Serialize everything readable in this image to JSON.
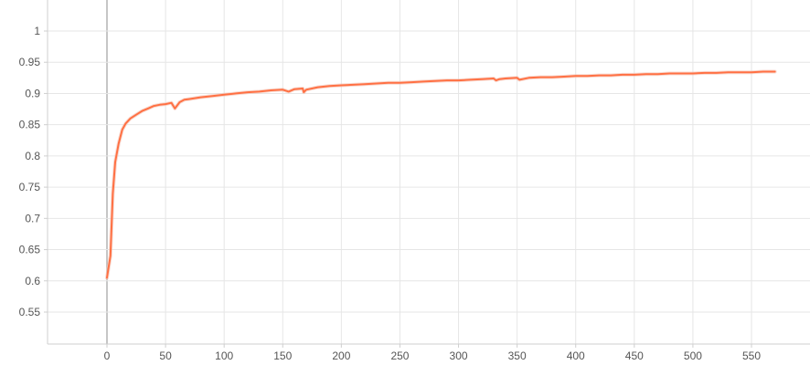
{
  "chart_data": {
    "type": "line",
    "title": "",
    "xlabel": "",
    "ylabel": "",
    "xlim": [
      -50,
      600
    ],
    "ylim": [
      0.5,
      1.05
    ],
    "x_ticks": [
      0,
      50,
      100,
      150,
      200,
      250,
      300,
      350,
      400,
      450,
      500,
      550
    ],
    "x_tick_labels": [
      "0",
      "50",
      "100",
      "150",
      "200",
      "250",
      "300",
      "350",
      "400",
      "450",
      "500",
      "550"
    ],
    "y_ticks": [
      0.55,
      0.6,
      0.65,
      0.7,
      0.75,
      0.8,
      0.85,
      0.9,
      0.95,
      1.0
    ],
    "y_tick_labels": [
      "0.55",
      "0.6",
      "0.65",
      "0.7",
      "0.75",
      "0.8",
      "0.85",
      "0.9",
      "0.95",
      "1"
    ],
    "grid": true,
    "colors": {
      "grid": "#e6e6e6",
      "axis": "#cfcfcf",
      "zero_line": "#a0a0a0",
      "series_main": "#ff7043",
      "series_raw": "#f3c2b2"
    },
    "series": [
      {
        "role": "smoothed",
        "x": [
          0,
          3,
          5,
          7,
          10,
          13,
          16,
          20,
          25,
          30,
          35,
          40,
          45,
          50,
          55,
          58,
          62,
          66,
          70,
          80,
          90,
          100,
          110,
          120,
          130,
          140,
          150,
          155,
          160,
          167,
          168,
          170,
          180,
          190,
          200,
          210,
          220,
          230,
          240,
          250,
          260,
          270,
          280,
          290,
          300,
          310,
          320,
          330,
          332,
          335,
          340,
          350,
          352,
          360,
          370,
          380,
          390,
          400,
          410,
          420,
          430,
          440,
          450,
          460,
          470,
          480,
          490,
          500,
          510,
          520,
          530,
          540,
          550,
          560,
          570
        ],
        "y": [
          0.605,
          0.64,
          0.74,
          0.79,
          0.82,
          0.842,
          0.852,
          0.86,
          0.866,
          0.872,
          0.876,
          0.88,
          0.882,
          0.883,
          0.885,
          0.876,
          0.886,
          0.89,
          0.891,
          0.894,
          0.896,
          0.898,
          0.9,
          0.902,
          0.903,
          0.905,
          0.906,
          0.903,
          0.907,
          0.908,
          0.902,
          0.906,
          0.91,
          0.912,
          0.913,
          0.914,
          0.915,
          0.916,
          0.917,
          0.917,
          0.918,
          0.919,
          0.92,
          0.921,
          0.921,
          0.922,
          0.923,
          0.924,
          0.921,
          0.923,
          0.924,
          0.925,
          0.922,
          0.925,
          0.926,
          0.926,
          0.927,
          0.928,
          0.928,
          0.929,
          0.929,
          0.93,
          0.93,
          0.931,
          0.931,
          0.932,
          0.932,
          0.932,
          0.933,
          0.933,
          0.934,
          0.934,
          0.934,
          0.935,
          0.935
        ]
      }
    ]
  }
}
